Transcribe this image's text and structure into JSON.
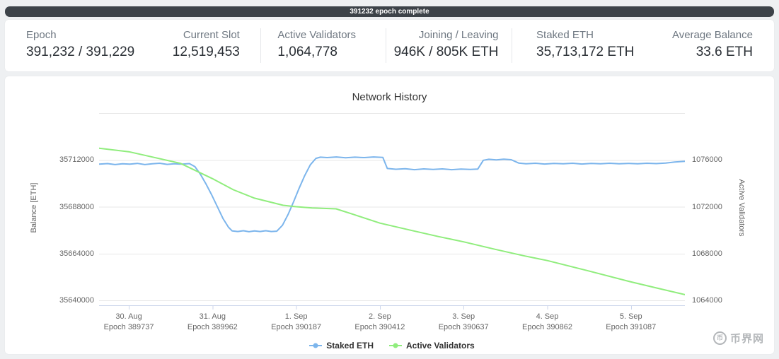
{
  "banner": {
    "text": "391232 epoch complete"
  },
  "stats": {
    "items": [
      {
        "label": "Epoch",
        "value": "391,232 / 391,229"
      },
      {
        "label": "Current Slot",
        "value": "12,519,453"
      },
      {
        "label": "Active Validators",
        "value": "1,064,778"
      },
      {
        "label": "Joining / Leaving",
        "value": "946K / 805K ETH"
      },
      {
        "label": "Staked ETH",
        "value": "35,713,172 ETH"
      },
      {
        "label": "Average Balance",
        "value": "33.6 ETH"
      }
    ]
  },
  "chart_data": {
    "type": "line",
    "title": "Network History",
    "legend_position": "bottom",
    "grid": true,
    "left_axis": {
      "title": "Balance [ETH]",
      "ticks": [
        35712000,
        35688000,
        35664000,
        35640000
      ],
      "range": [
        35637500,
        35736000
      ]
    },
    "right_axis": {
      "title": "Active Validators",
      "ticks": [
        1076000,
        1072000,
        1068000,
        1064000
      ],
      "range": [
        1063580,
        1080000
      ]
    },
    "grid_values": [
      35736000,
      35712000,
      35688000,
      35664000,
      35640000
    ],
    "x_axis": {
      "range": [
        389657,
        391232
      ],
      "ticks": [
        {
          "line1": "30. Aug",
          "line2": "Epoch 389737",
          "epoch": 389737
        },
        {
          "line1": "31. Aug",
          "line2": "Epoch 389962",
          "epoch": 389962
        },
        {
          "line1": "1. Sep",
          "line2": "Epoch 390187",
          "epoch": 390187
        },
        {
          "line1": "2. Sep",
          "line2": "Epoch 390412",
          "epoch": 390412
        },
        {
          "line1": "3. Sep",
          "line2": "Epoch 390637",
          "epoch": 390637
        },
        {
          "line1": "4. Sep",
          "line2": "Epoch 390862",
          "epoch": 390862
        },
        {
          "line1": "5. Sep",
          "line2": "Epoch 391087",
          "epoch": 391087
        }
      ]
    },
    "series": [
      {
        "name": "Staked ETH",
        "color": "#7cb5ec",
        "axis": "left",
        "points": [
          [
            389657,
            35709800
          ],
          [
            389680,
            35710100
          ],
          [
            389700,
            35709600
          ],
          [
            389720,
            35710000
          ],
          [
            389740,
            35709800
          ],
          [
            389760,
            35710200
          ],
          [
            389780,
            35709600
          ],
          [
            389800,
            35710000
          ],
          [
            389820,
            35710300
          ],
          [
            389840,
            35709700
          ],
          [
            389860,
            35710000
          ],
          [
            389880,
            35709800
          ],
          [
            389900,
            35710100
          ],
          [
            389915,
            35708500
          ],
          [
            389930,
            35704500
          ],
          [
            389945,
            35699500
          ],
          [
            389960,
            35694000
          ],
          [
            389975,
            35688000
          ],
          [
            389990,
            35682000
          ],
          [
            390005,
            35677500
          ],
          [
            390015,
            35675600
          ],
          [
            390030,
            35675300
          ],
          [
            390045,
            35675700
          ],
          [
            390060,
            35675200
          ],
          [
            390075,
            35675600
          ],
          [
            390090,
            35675300
          ],
          [
            390105,
            35675700
          ],
          [
            390120,
            35675300
          ],
          [
            390135,
            35675500
          ],
          [
            390150,
            35678500
          ],
          [
            390165,
            35684000
          ],
          [
            390180,
            35690500
          ],
          [
            390195,
            35697500
          ],
          [
            390210,
            35704000
          ],
          [
            390225,
            35709500
          ],
          [
            390240,
            35712800
          ],
          [
            390252,
            35713400
          ],
          [
            390270,
            35713200
          ],
          [
            390295,
            35713500
          ],
          [
            390320,
            35713100
          ],
          [
            390345,
            35713400
          ],
          [
            390370,
            35713200
          ],
          [
            390395,
            35713500
          ],
          [
            390420,
            35713300
          ],
          [
            390432,
            35707600
          ],
          [
            390455,
            35707200
          ],
          [
            390480,
            35707500
          ],
          [
            390505,
            35707000
          ],
          [
            390530,
            35707400
          ],
          [
            390555,
            35707100
          ],
          [
            390580,
            35707400
          ],
          [
            390605,
            35707000
          ],
          [
            390630,
            35707300
          ],
          [
            390655,
            35707100
          ],
          [
            390675,
            35707300
          ],
          [
            390690,
            35711800
          ],
          [
            390705,
            35712300
          ],
          [
            390725,
            35712000
          ],
          [
            390745,
            35712400
          ],
          [
            390765,
            35712100
          ],
          [
            390785,
            35710400
          ],
          [
            390805,
            35710000
          ],
          [
            390830,
            35710300
          ],
          [
            390855,
            35709900
          ],
          [
            390880,
            35710200
          ],
          [
            390905,
            35710000
          ],
          [
            390930,
            35710300
          ],
          [
            390955,
            35709900
          ],
          [
            390980,
            35710200
          ],
          [
            391005,
            35710000
          ],
          [
            391030,
            35710300
          ],
          [
            391055,
            35710000
          ],
          [
            391080,
            35710200
          ],
          [
            391105,
            35710000
          ],
          [
            391130,
            35710300
          ],
          [
            391155,
            35710100
          ],
          [
            391180,
            35710400
          ],
          [
            391205,
            35710900
          ],
          [
            391232,
            35711300
          ]
        ]
      },
      {
        "name": "Active Validators",
        "color": "#90ed7d",
        "axis": "right",
        "points": [
          [
            389657,
            1077000
          ],
          [
            389737,
            1076700
          ],
          [
            389876,
            1075700
          ],
          [
            389962,
            1074400
          ],
          [
            390018,
            1073450
          ],
          [
            390075,
            1072730
          ],
          [
            390152,
            1072120
          ],
          [
            390187,
            1072000
          ],
          [
            390230,
            1071900
          ],
          [
            390294,
            1071820
          ],
          [
            390342,
            1071330
          ],
          [
            390412,
            1070600
          ],
          [
            390494,
            1070000
          ],
          [
            390570,
            1069450
          ],
          [
            390637,
            1069000
          ],
          [
            390722,
            1068360
          ],
          [
            390798,
            1067820
          ],
          [
            390862,
            1067400
          ],
          [
            390969,
            1066550
          ],
          [
            391087,
            1065580
          ],
          [
            391160,
            1065030
          ],
          [
            391232,
            1064490
          ]
        ]
      }
    ]
  },
  "watermark": {
    "text": "币界网",
    "icon_char": "币"
  }
}
